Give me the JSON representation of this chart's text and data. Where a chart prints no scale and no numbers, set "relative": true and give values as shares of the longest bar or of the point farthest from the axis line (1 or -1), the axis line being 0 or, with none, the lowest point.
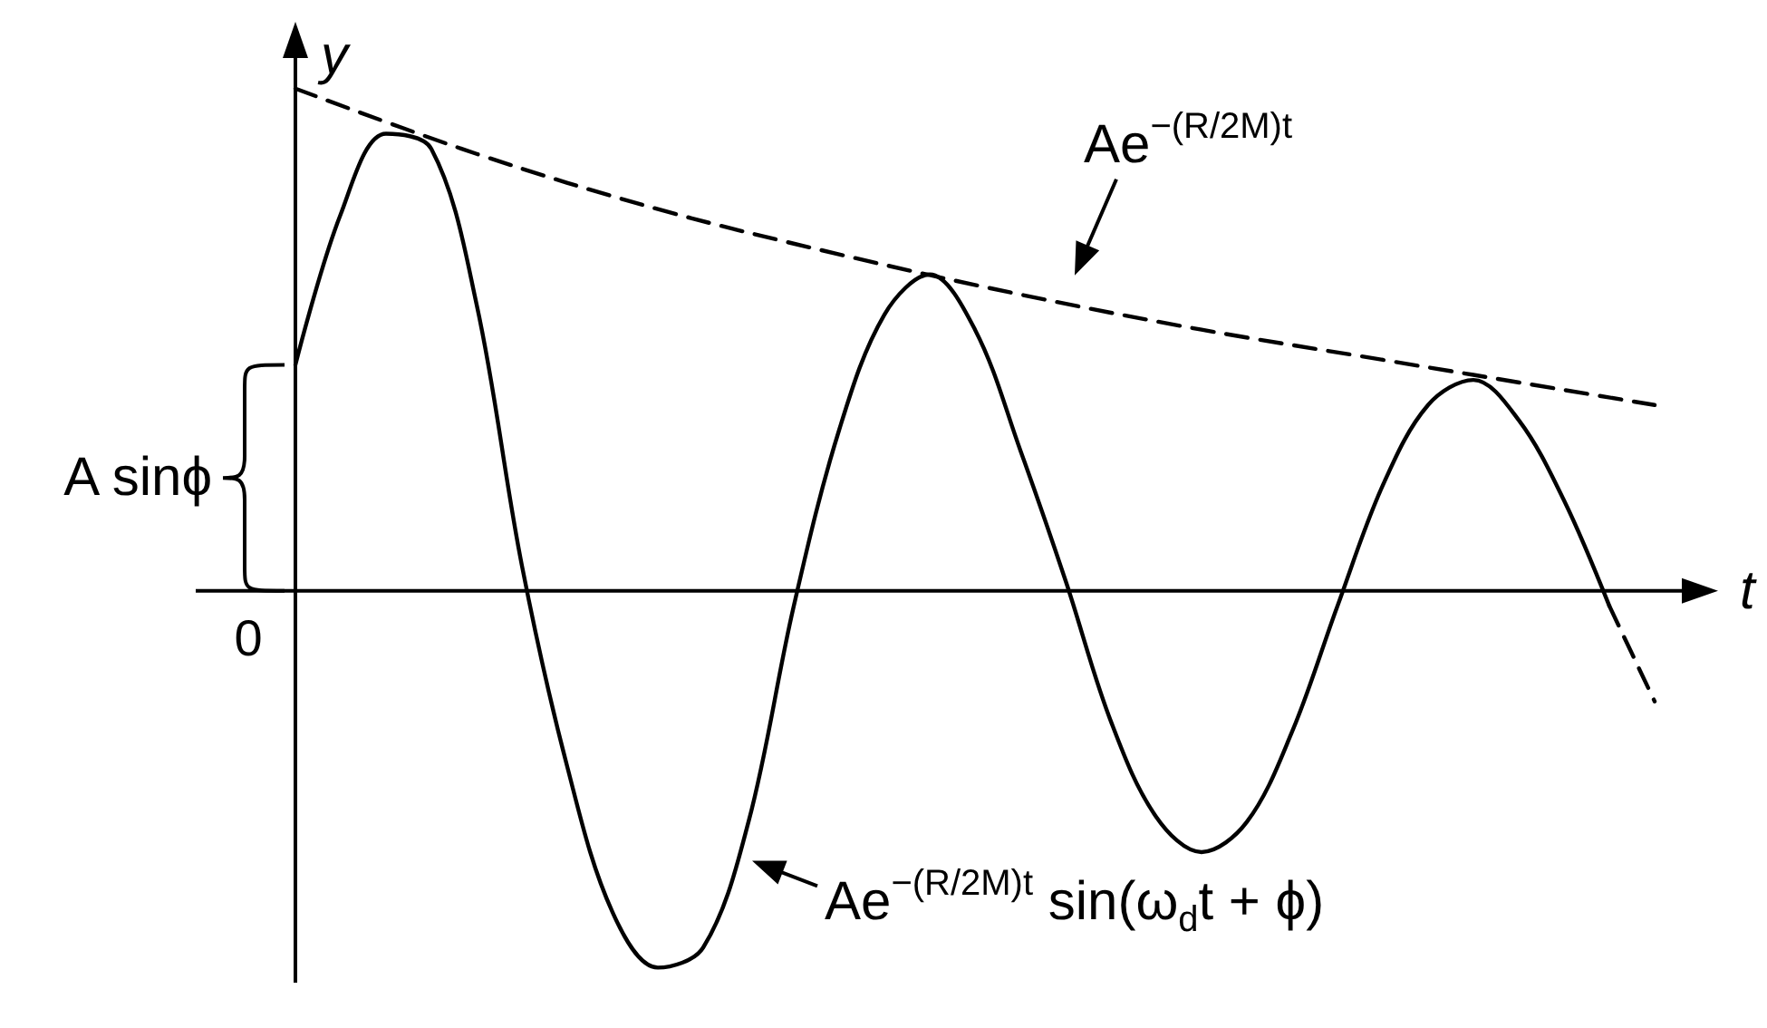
{
  "chart_data": {
    "type": "line",
    "relative": true,
    "xlabel": "t",
    "ylabel": "y",
    "marker": "none",
    "categories": [
      null,
      null,
      null,
      null,
      null,
      null,
      null,
      null,
      null,
      null,
      null,
      null,
      null,
      null,
      null,
      null,
      null,
      null,
      null,
      null,
      null,
      null,
      null,
      null,
      null,
      null,
      null,
      null,
      null,
      null,
      null
    ],
    "series": [
      {
        "color": "#000000",
        "line_style": "solid",
        "values": [
          0.45,
          0.75,
          0.91,
          0.88,
          0.57,
          0.05,
          -0.35,
          -0.64,
          -0.75,
          -0.71,
          -0.46,
          -0.03,
          0.32,
          0.55,
          0.63,
          0.52,
          0.28,
          0.02,
          -0.26,
          -0.45,
          -0.52,
          -0.46,
          -0.28,
          -0.03,
          0.21,
          0.37,
          0.42,
          0.34,
          0.18,
          -0.03,
          null
        ]
      },
      {
        "color": "#000000",
        "line_style": "dashed",
        "values": [
          null,
          null,
          null,
          null,
          null,
          null,
          null,
          null,
          null,
          null,
          null,
          null,
          null,
          null,
          null,
          null,
          null,
          null,
          null,
          null,
          null,
          null,
          null,
          null,
          null,
          null,
          null,
          null,
          null,
          -0.03,
          -0.22
        ]
      },
      {
        "color": "#000000",
        "line_style": "dashed",
        "values": [
          1.0,
          null,
          null,
          null,
          0.87,
          null,
          null,
          null,
          0.76,
          null,
          null,
          null,
          0.67,
          null,
          null,
          null,
          0.59,
          null,
          null,
          null,
          0.52,
          null,
          null,
          null,
          0.46,
          null,
          null,
          null,
          0.4,
          null,
          0.37
        ]
      }
    ],
    "annotations": [
      "A sinϕ",
      "Ae$^{−(R/2M)t}$",
      "Ae$^{−(R/2M)t}$ sin(ω$_{d}$t + ϕ)",
      "0"
    ]
  }
}
